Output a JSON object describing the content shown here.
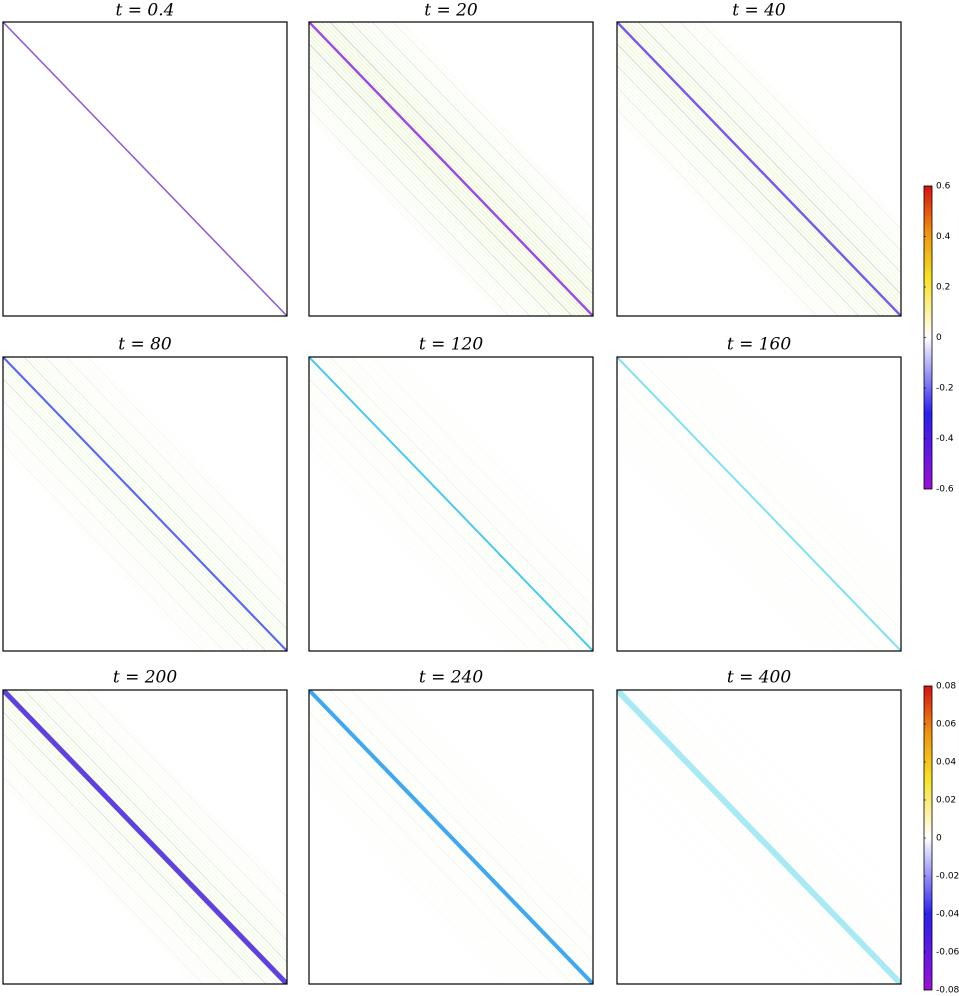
{
  "panels": [
    {
      "title": "t = 0.4"
    },
    {
      "title": "t = 20"
    },
    {
      "title": "t = 40"
    },
    {
      "title": "t = 80"
    },
    {
      "title": "t = 120"
    },
    {
      "title": "t = 160"
    },
    {
      "title": "t = 200"
    },
    {
      "title": "t = 240"
    },
    {
      "title": "t = 400"
    }
  ],
  "colorbars": [
    {
      "lim": [
        -0.6,
        0.6
      ],
      "ticks": [
        0.6,
        0.4,
        0.2,
        0,
        -0.2,
        -0.4,
        -0.6
      ]
    },
    {
      "lim": [
        -0.08,
        0.08
      ],
      "ticks": [
        0.08,
        0.06,
        0.04,
        0.02,
        0,
        -0.02,
        -0.04,
        -0.06,
        -0.08
      ]
    }
  ]
}
